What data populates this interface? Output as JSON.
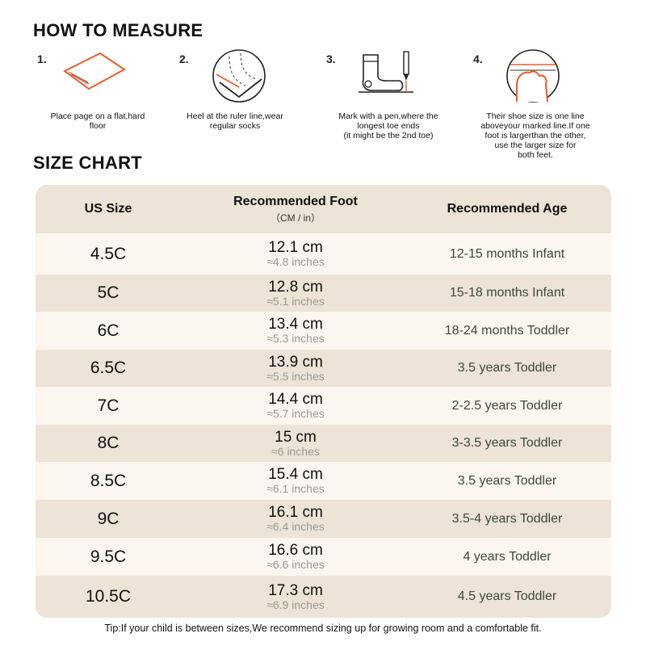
{
  "measure": {
    "title": "HOW TO MEASURE",
    "steps": [
      {
        "num": "1.",
        "icon": "paper-sheet-icon",
        "caption": "Place page on a flat,hard\nfloor"
      },
      {
        "num": "2.",
        "icon": "heel-ruler-icon",
        "caption": "Heel at the ruler line,wear\nregular socks"
      },
      {
        "num": "3.",
        "icon": "sock-pen-icon",
        "caption": "Mark with a pen,where the\nlongest toe ends\n(it might be the 2nd toe)"
      },
      {
        "num": "4.",
        "icon": "foot-line-icon",
        "caption": "Their shoe size is one line\naboveyour marked line.If one\nfoot is largerthan the other,\nuse the larger size for\nboth feet."
      }
    ]
  },
  "chart": {
    "title": "SIZE CHART",
    "headers": {
      "size": "US Size",
      "foot": "Recommended Foot",
      "foot_sub": "（CM / in）",
      "age": "Recommended Age"
    },
    "rows": [
      {
        "size": "4.5C",
        "cm": "12.1 cm",
        "inches": "≈4.8 inches",
        "age": "12-15 months Infant"
      },
      {
        "size": "5C",
        "cm": "12.8 cm",
        "inches": "≈5.1 inches",
        "age": "15-18 months Infant"
      },
      {
        "size": "6C",
        "cm": "13.4 cm",
        "inches": "≈5.3 inches",
        "age": "18-24 months Toddler"
      },
      {
        "size": "6.5C",
        "cm": "13.9 cm",
        "inches": "≈5.5 inches",
        "age": "3.5 years Toddler"
      },
      {
        "size": "7C",
        "cm": "14.4 cm",
        "inches": "≈5.7 inches",
        "age": "2-2.5 years Toddler"
      },
      {
        "size": "8C",
        "cm": "15 cm",
        "inches": "≈6 inches",
        "age": "3-3.5 years Toddler"
      },
      {
        "size": "8.5C",
        "cm": "15.4 cm",
        "inches": "≈6.1 inches",
        "age": "3.5 years Toddler"
      },
      {
        "size": "9C",
        "cm": "16.1 cm",
        "inches": "≈6.4 inches",
        "age": "3.5-4 years Toddler"
      },
      {
        "size": "9.5C",
        "cm": "16.6 cm",
        "inches": "≈6.6 inches",
        "age": "4 years Toddler"
      },
      {
        "size": "10.5C",
        "cm": "17.3 cm",
        "inches": "≈6.9 inches",
        "age": "4.5 years Toddler"
      }
    ]
  },
  "tip": "Tip:If your child is between sizes,We recommend sizing up for growing room and a comfortable fit.",
  "colors": {
    "accent": "#ef5a2a",
    "header_bg": "#ede3d6",
    "row_light": "#fbf6ef",
    "age_text": "#3b4a38"
  }
}
